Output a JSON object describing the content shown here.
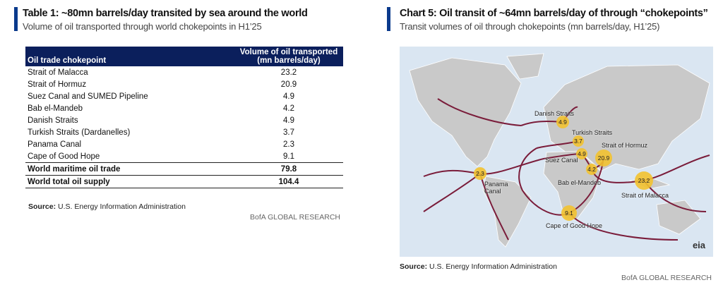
{
  "table_panel": {
    "title": "Table 1: ~80mn barrels/day transited by sea around the world",
    "subtitle": "Volume of oil transported through world chokepoints in H1’25",
    "header": [
      "Oil trade chokepoint",
      [
        "Volume of oil transported",
        "(mn barrels/day)"
      ]
    ],
    "rows": [
      [
        "Strait of Malacca",
        23.2
      ],
      [
        "Strait of Hormuz",
        20.9
      ],
      [
        "Suez Canal and SUMED Pipeline",
        4.9
      ],
      [
        "Bab el-Mandeb",
        4.2
      ],
      [
        "Danish Straits",
        4.9
      ],
      [
        "Turkish Straits (Dardanelles)",
        3.7
      ],
      [
        "Panama Canal",
        2.3
      ],
      [
        "Cape of Good Hope",
        9.1
      ]
    ],
    "totals": [
      [
        "World maritime oil trade",
        79.8
      ],
      [
        "World total oil supply",
        104.4
      ]
    ],
    "source_label": "Source:",
    "source": "U.S. Energy Information Administration",
    "credit": "BofA GLOBAL RESEARCH"
  },
  "map_panel": {
    "title": "Chart 5: Oil transit of ~64mn barrels/day of through “chokepoints”",
    "subtitle": "Transit volumes of oil through chokepoints (mn barrels/day, H1’25)",
    "chokepoints": [
      {
        "label": "Danish Straits",
        "value": 4.9
      },
      {
        "label": "Turkish Straits",
        "value": 3.7
      },
      {
        "label": "Suez Canal",
        "value": 4.9
      },
      {
        "label": "Strait of Hormuz",
        "value": 20.9
      },
      {
        "label": "Bab el-Mandeb",
        "value": 4.2
      },
      {
        "label": "Strait of Malacca",
        "value": 23.2
      },
      {
        "label": "Panama Canal",
        "value": 2.3
      },
      {
        "label": "Cape of Good Hope",
        "value": 9.1
      }
    ],
    "logo": "eia",
    "source_label": "Source:",
    "source": "U.S. Energy Information Administration",
    "credit": "BofA GLOBAL RESEARCH"
  }
}
